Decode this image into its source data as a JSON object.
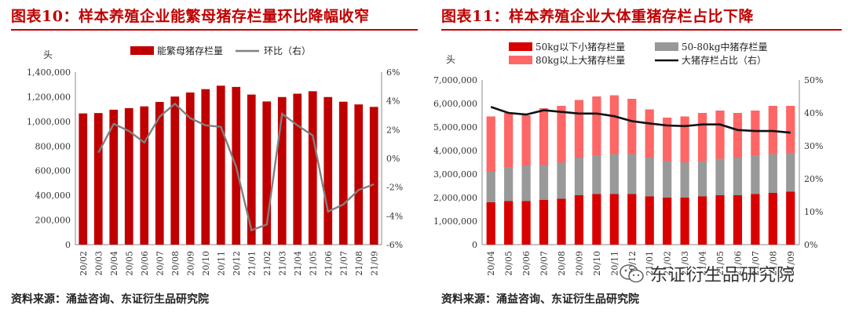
{
  "left": {
    "title": "图表10：样本养殖企业能繁母猪存栏量环比降幅收窄",
    "source": "资料来源：涌益咨询、东证衍生品研究院",
    "chart_data": {
      "type": "bar+line",
      "ylabel_left": "头",
      "legend": [
        "能繁母猪存栏量",
        "环比（右）"
      ],
      "categories": [
        "20/02",
        "20/03",
        "20/04",
        "20/05",
        "20/06",
        "20/07",
        "20/08",
        "20/09",
        "20/10",
        "20/11",
        "20/12",
        "21/01",
        "21/02",
        "21/03",
        "21/04",
        "21/05",
        "21/06",
        "21/07",
        "21/08",
        "21/09"
      ],
      "bar_values": [
        1065000,
        1068000,
        1095000,
        1108000,
        1122000,
        1158000,
        1202000,
        1235000,
        1262000,
        1290000,
        1280000,
        1218000,
        1162000,
        1198000,
        1225000,
        1245000,
        1198000,
        1160000,
        1138000,
        1118000
      ],
      "line_values": [
        null,
        0.4,
        2.4,
        1.9,
        1.1,
        2.9,
        3.8,
        2.8,
        2.3,
        2.2,
        -0.6,
        -5.0,
        -4.6,
        3.1,
        2.3,
        1.6,
        -3.7,
        -3.2,
        -2.2,
        -1.8
      ],
      "ylim_left": [
        0,
        1400000
      ],
      "yticks_left": [
        "0",
        "200,000",
        "400,000",
        "600,000",
        "800,000",
        "1,000,000",
        "1,200,000",
        "1,400,000"
      ],
      "ylim_right": [
        -6,
        6
      ],
      "yticks_right": [
        "-6%",
        "-4%",
        "-2%",
        "0%",
        "2%",
        "4%",
        "6%"
      ],
      "colors": {
        "bar": "#c00000",
        "line": "#808080"
      }
    }
  },
  "right": {
    "title": "图表11：样本养殖企业大体重猪存栏占比下降",
    "source": "资料来源：涌益咨询、东证衍生品研究院",
    "chart_data": {
      "type": "stacked-bar+line",
      "ylabel_left": "头",
      "legend": [
        "50kg以下小猪存栏量",
        "50-80kg中猪存栏量",
        "80kg以上大猪存栏量",
        "大猪存栏占比（右）"
      ],
      "categories": [
        "20/04",
        "20/05",
        "20/06",
        "20/07",
        "20/08",
        "20/09",
        "20/10",
        "20/11",
        "20/12",
        "21/01",
        "21/02",
        "21/03",
        "21/04",
        "21/05",
        "21/06",
        "21/07",
        "21/08",
        "21/09"
      ],
      "series": [
        {
          "name": "50kg以下小猪存栏量",
          "values": [
            1800000,
            1850000,
            1850000,
            1900000,
            1950000,
            2100000,
            2150000,
            2150000,
            2150000,
            2050000,
            2000000,
            2000000,
            2050000,
            2100000,
            2100000,
            2150000,
            2200000,
            2250000
          ]
        },
        {
          "name": "50-80kg中猪存栏量",
          "values": [
            1300000,
            1450000,
            1500000,
            1500000,
            1550000,
            1600000,
            1650000,
            1700000,
            1700000,
            1650000,
            1550000,
            1500000,
            1500000,
            1550000,
            1600000,
            1650000,
            1650000,
            1650000
          ]
        },
        {
          "name": "80kg以上大猪存栏量",
          "values": [
            2350000,
            2300000,
            2150000,
            2400000,
            2400000,
            2450000,
            2500000,
            2500000,
            2350000,
            2050000,
            1850000,
            1950000,
            2050000,
            2050000,
            1900000,
            1900000,
            2050000,
            2000000
          ]
        }
      ],
      "line_values": [
        41.8,
        40.0,
        39.5,
        40.8,
        40.3,
        39.8,
        39.8,
        39.0,
        37.5,
        36.8,
        36.2,
        36.0,
        36.5,
        36.5,
        34.8,
        34.5,
        34.5,
        34.0
      ],
      "ylim_left": [
        0,
        7000000
      ],
      "yticks_left": [
        "0",
        "1,000,000",
        "2,000,000",
        "3,000,000",
        "4,000,000",
        "5,000,000",
        "6,000,000",
        "7,000,000"
      ],
      "ylim_right": [
        0,
        50
      ],
      "yticks_right": [
        "0%",
        "10%",
        "20%",
        "30%",
        "40%",
        "50%"
      ],
      "colors": {
        "small": "#d90000",
        "mid": "#999999",
        "large": "#ff6666",
        "line": "#111111"
      }
    }
  },
  "watermark": "东证衍生品研究院"
}
